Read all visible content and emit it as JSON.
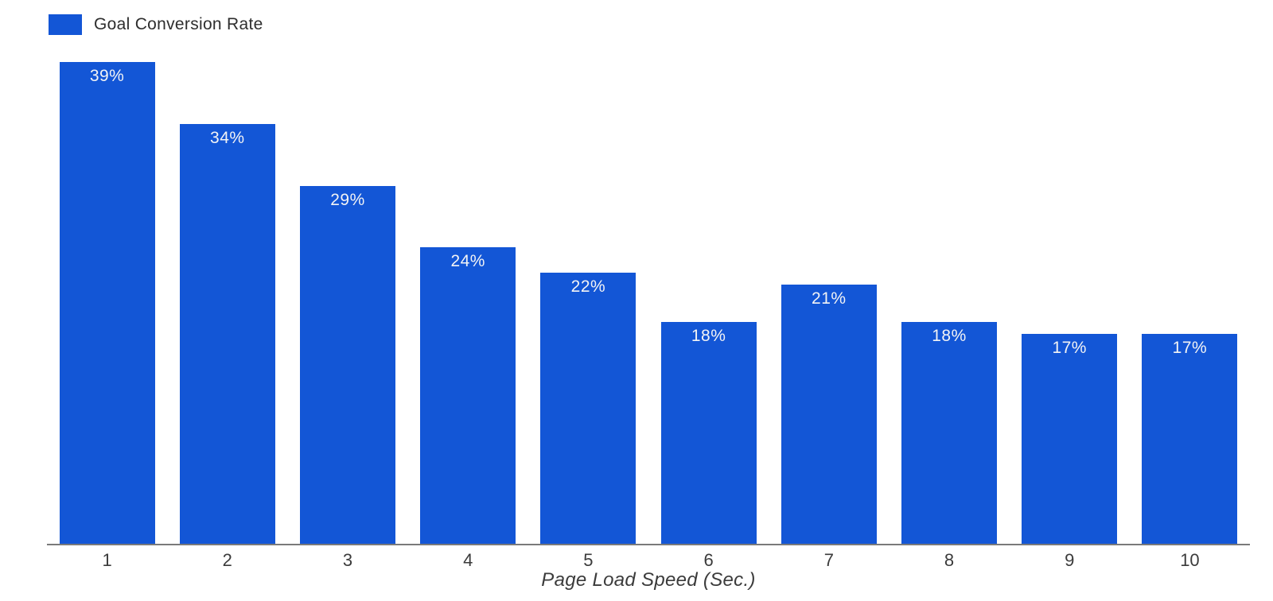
{
  "chart_data": {
    "type": "bar",
    "categories": [
      "1",
      "2",
      "3",
      "4",
      "5",
      "6",
      "7",
      "8",
      "9",
      "10"
    ],
    "values": [
      39,
      34,
      29,
      24,
      22,
      18,
      21,
      18,
      17,
      17
    ],
    "value_labels": [
      "39%",
      "34%",
      "29%",
      "24%",
      "22%",
      "18%",
      "21%",
      "18%",
      "17%",
      "17%"
    ],
    "title": "",
    "xlabel": "Page Load Speed (Sec.)",
    "ylabel": "",
    "ylim": [
      0,
      39
    ],
    "grid": false,
    "legend": {
      "label": "Goal Conversion Rate",
      "position": "top-left"
    },
    "colors": {
      "bar": "#1356d6",
      "value_label": "#f2f3f5",
      "axis_line": "#7a7a7a",
      "text": "#3b3b3b",
      "background": "#ffffff"
    }
  }
}
